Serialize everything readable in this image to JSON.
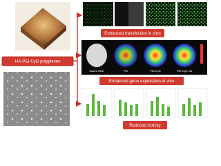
{
  "main_label": "HA-PEI-CyD polyplexes",
  "outcomes": [
    "Enhanced transfection in vitro",
    "Enhanced gene expression in vivo",
    "Reduced toxicity"
  ],
  "in_vivo_groups": [
    "Naked DNA",
    "PEI",
    "PEI-CyD",
    "PEI-CyD-HA"
  ]
}
